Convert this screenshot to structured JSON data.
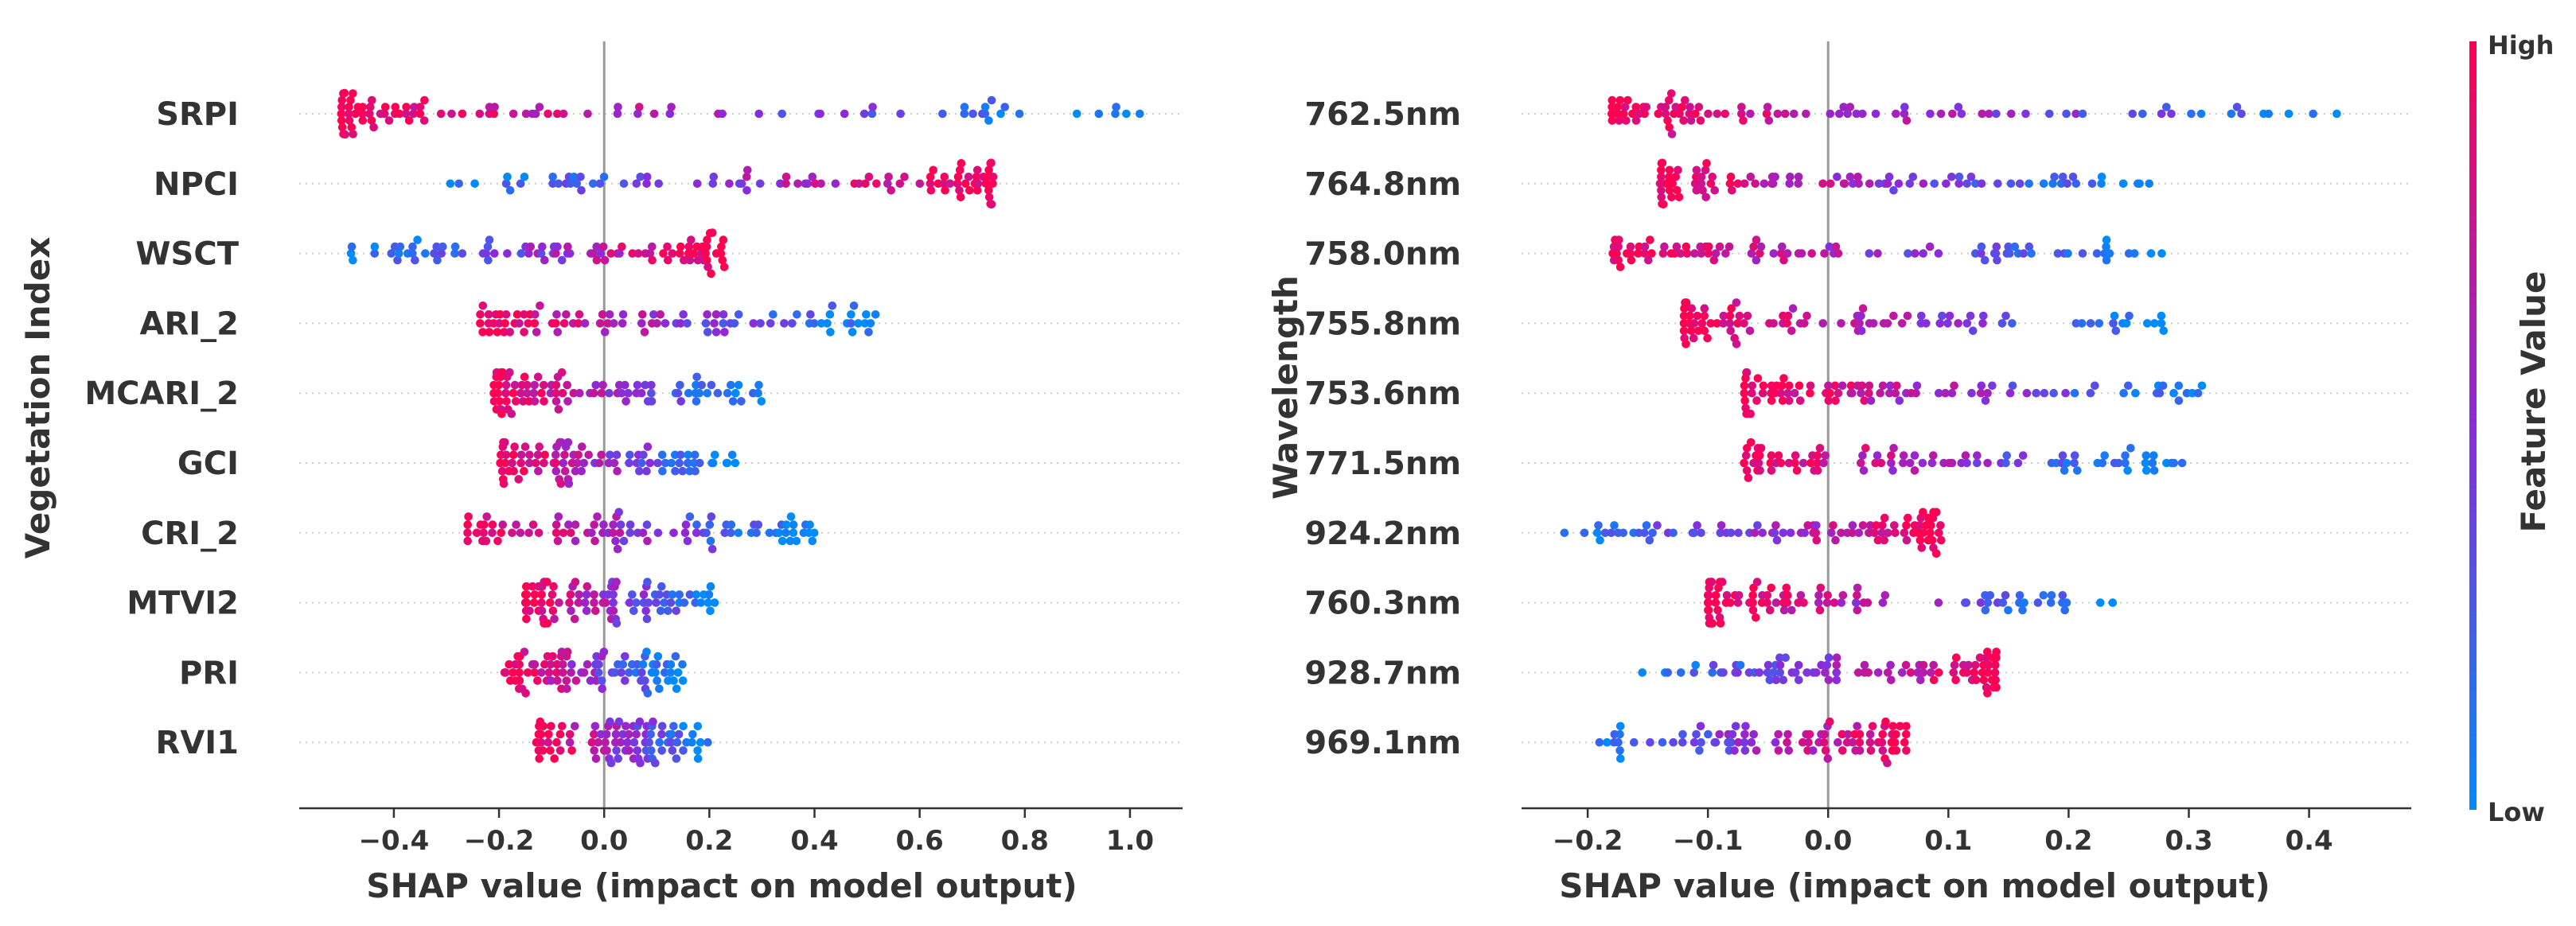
{
  "colorbar": {
    "title": "Feature Value",
    "high_label": "High",
    "low_label": "Low",
    "high_color": "#ff0052",
    "mid_color": "#8b2bd9",
    "low_color": "#008bfb"
  },
  "chart_data": [
    {
      "type": "scatter",
      "subtype": "shap-beeswarm",
      "title": "",
      "xlabel": "SHAP value (impact on model output)",
      "ylabel": "Vegetation Index",
      "xlim": [
        -0.58,
        1.1
      ],
      "xticks": [
        -0.4,
        -0.2,
        0.0,
        0.2,
        0.4,
        0.6,
        0.8,
        1.0
      ],
      "xtick_labels": [
        "−0.4",
        "−0.2",
        "0.0",
        "0.2",
        "0.4",
        "0.6",
        "0.8",
        "1.0"
      ],
      "features": [
        {
          "name": "SRPI",
          "min": -0.5,
          "max": 1.02,
          "high": "left",
          "skew": 0.7,
          "width": 1.0
        },
        {
          "name": "NPCI",
          "min": -0.3,
          "max": 0.74,
          "high": "right",
          "skew": 0.5,
          "width": 1.0
        },
        {
          "name": "WSCT",
          "min": -0.49,
          "max": 0.23,
          "high": "right",
          "skew": 0.35,
          "width": 1.0
        },
        {
          "name": "ARI_2",
          "min": -0.24,
          "max": 0.55,
          "high": "left",
          "skew": 0.2,
          "width": 1.3
        },
        {
          "name": "MCARI_2",
          "min": -0.21,
          "max": 0.3,
          "high": "left",
          "skew": 0.25,
          "width": 1.2
        },
        {
          "name": "GCI",
          "min": -0.2,
          "max": 0.25,
          "high": "left",
          "skew": 0.3,
          "width": 1.2
        },
        {
          "name": "CRI_2",
          "min": -0.26,
          "max": 0.4,
          "high": "left",
          "skew": 0.2,
          "width": 1.2
        },
        {
          "name": "MTVI2",
          "min": -0.15,
          "max": 0.22,
          "high": "left",
          "skew": 0.3,
          "width": 1.2
        },
        {
          "name": "PRI",
          "min": -0.19,
          "max": 0.15,
          "high": "left",
          "skew": 0.2,
          "width": 1.2
        },
        {
          "name": "RVI1",
          "min": -0.13,
          "max": 0.2,
          "high": "left",
          "skew": 0.3,
          "width": 1.2
        }
      ]
    },
    {
      "type": "scatter",
      "subtype": "shap-beeswarm",
      "title": "",
      "xlabel": "SHAP value (impact on model output)",
      "ylabel": "Wavelength",
      "xlim": [
        -0.255,
        0.485
      ],
      "xticks": [
        -0.2,
        -0.1,
        0.0,
        0.1,
        0.2,
        0.3,
        0.4
      ],
      "xtick_labels": [
        "−0.2",
        "−0.1",
        "0.0",
        "0.1",
        "0.2",
        "0.3",
        "0.4"
      ],
      "features": [
        {
          "name": "762.5nm",
          "min": -0.18,
          "max": 0.45,
          "high": "left",
          "skew": 0.5,
          "width": 1.0
        },
        {
          "name": "764.8nm",
          "min": -0.14,
          "max": 0.27,
          "high": "left",
          "skew": 0.4,
          "width": 1.0
        },
        {
          "name": "758.0nm",
          "min": -0.18,
          "max": 0.28,
          "high": "left",
          "skew": 0.4,
          "width": 1.0
        },
        {
          "name": "755.8nm",
          "min": -0.12,
          "max": 0.29,
          "high": "left",
          "skew": 0.35,
          "width": 1.1
        },
        {
          "name": "753.6nm",
          "min": -0.07,
          "max": 0.32,
          "high": "left",
          "skew": 0.35,
          "width": 1.1
        },
        {
          "name": "771.5nm",
          "min": -0.07,
          "max": 0.3,
          "high": "left",
          "skew": 0.3,
          "width": 1.1
        },
        {
          "name": "924.2nm",
          "min": -0.22,
          "max": 0.095,
          "high": "right",
          "skew": 0.4,
          "width": 1.1
        },
        {
          "name": "760.3nm",
          "min": -0.1,
          "max": 0.24,
          "high": "left",
          "skew": 0.4,
          "width": 1.1
        },
        {
          "name": "928.7nm",
          "min": -0.16,
          "max": 0.14,
          "high": "right",
          "skew": 0.4,
          "width": 1.1
        },
        {
          "name": "969.1nm",
          "min": -0.2,
          "max": 0.065,
          "high": "right",
          "skew": 0.4,
          "width": 1.2
        }
      ]
    }
  ]
}
